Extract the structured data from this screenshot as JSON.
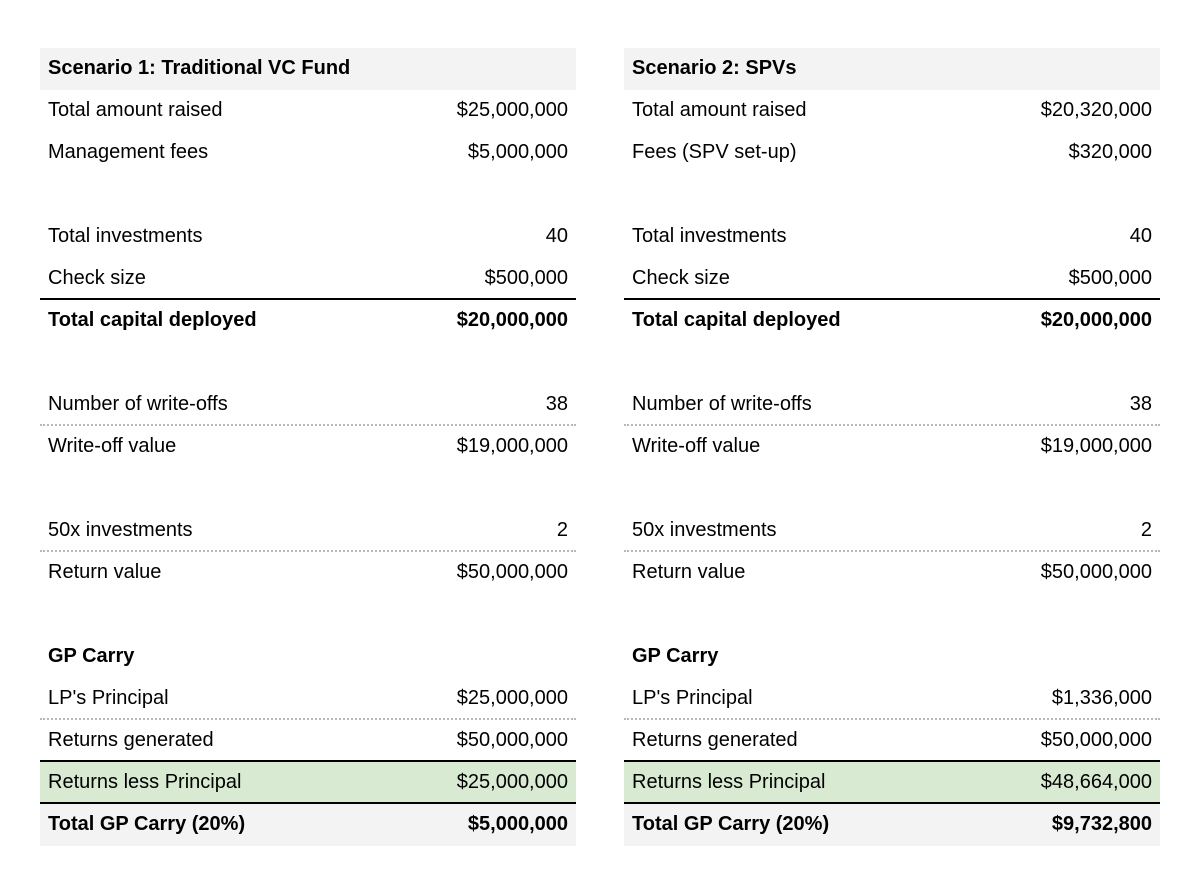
{
  "scenarios": [
    {
      "title": "Scenario 1: Traditional VC Fund",
      "rows": {
        "total_raised": {
          "label": "Total amount raised",
          "value": "$25,000,000"
        },
        "fees": {
          "label": "Management fees",
          "value": "$5,000,000"
        },
        "total_investments": {
          "label": "Total investments",
          "value": "40"
        },
        "check_size": {
          "label": "Check size",
          "value": "$500,000"
        },
        "capital_deployed": {
          "label": "Total capital deployed",
          "value": "$20,000,000"
        },
        "write_offs_count": {
          "label": "Number of write-offs",
          "value": "38"
        },
        "write_off_value": {
          "label": "Write-off value",
          "value": "$19,000,000"
        },
        "fifty_x_count": {
          "label": "50x investments",
          "value": "2"
        },
        "return_value": {
          "label": "Return value",
          "value": "$50,000,000"
        },
        "gp_carry_header": {
          "label": "GP Carry"
        },
        "lp_principal": {
          "label": "LP's Principal",
          "value": "$25,000,000"
        },
        "returns_generated": {
          "label": "Returns generated",
          "value": "$50,000,000"
        },
        "returns_less_principal": {
          "label": "Returns less Principal",
          "value": "$25,000,000"
        },
        "total_gp_carry": {
          "label": "Total GP Carry (20%)",
          "value": "$5,000,000"
        }
      }
    },
    {
      "title": "Scenario 2: SPVs",
      "rows": {
        "total_raised": {
          "label": "Total amount raised",
          "value": "$20,320,000"
        },
        "fees": {
          "label": "Fees (SPV set-up)",
          "value": "$320,000"
        },
        "total_investments": {
          "label": "Total investments",
          "value": "40"
        },
        "check_size": {
          "label": "Check size",
          "value": "$500,000"
        },
        "capital_deployed": {
          "label": "Total capital deployed",
          "value": "$20,000,000"
        },
        "write_offs_count": {
          "label": "Number of write-offs",
          "value": "38"
        },
        "write_off_value": {
          "label": "Write-off value",
          "value": "$19,000,000"
        },
        "fifty_x_count": {
          "label": "50x investments",
          "value": "2"
        },
        "return_value": {
          "label": "Return value",
          "value": "$50,000,000"
        },
        "gp_carry_header": {
          "label": "GP Carry"
        },
        "lp_principal": {
          "label": "LP's Principal",
          "value": "$1,336,000"
        },
        "returns_generated": {
          "label": "Returns generated",
          "value": "$50,000,000"
        },
        "returns_less_principal": {
          "label": "Returns less Principal",
          "value": "$48,664,000"
        },
        "total_gp_carry": {
          "label": "Total GP Carry (20%)",
          "value": "$9,732,800"
        }
      }
    }
  ],
  "colors": {
    "header_bg": "#f3f3f3",
    "highlight_green": "#d9ead3",
    "dotted_rule": "#b7b7b7"
  }
}
